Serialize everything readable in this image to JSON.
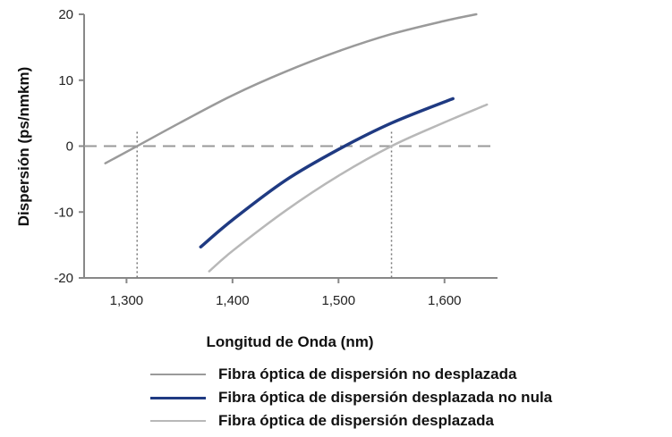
{
  "chart_data": {
    "type": "line",
    "xlabel": "Longitud de Onda (nm)",
    "ylabel": "Dispersión (ps/nmkm)",
    "xlim": [
      1260,
      1650
    ],
    "ylim": [
      -20,
      20
    ],
    "x_ticks": [
      1300,
      1400,
      1500,
      1600
    ],
    "x_tick_labels": [
      "1,300",
      "1,400",
      "1,500",
      "1,600"
    ],
    "y_ticks": [
      20,
      10,
      0,
      -10,
      -20
    ],
    "y_tick_labels": [
      "20",
      "10",
      "0",
      "-10",
      "-20"
    ],
    "grid": false,
    "legend_position": "bottom",
    "reference_lines": {
      "horizontal_y": 0,
      "vertical_x": [
        1310,
        1550
      ]
    },
    "series": [
      {
        "name": "Fibra óptica de dispersión no desplazada",
        "color": "#9a9a9a",
        "x": [
          1280,
          1310,
          1350,
          1400,
          1450,
          1500,
          1550,
          1600,
          1630
        ],
        "y": [
          -2.6,
          0,
          3.5,
          7.7,
          11.3,
          14.4,
          17.0,
          19.0,
          20.0
        ]
      },
      {
        "name": "Fibra óptica de dispersión desplazada no nula",
        "color": "#1f3a82",
        "x": [
          1370,
          1400,
          1450,
          1500,
          1550,
          1608
        ],
        "y": [
          -15.3,
          -11.2,
          -5.2,
          -0.5,
          3.5,
          7.2
        ]
      },
      {
        "name": "Fibra óptica de dispersión desplazada",
        "color": "#b8b8b8",
        "x": [
          1378,
          1400,
          1450,
          1500,
          1550,
          1600,
          1640
        ],
        "y": [
          -19.0,
          -15.9,
          -9.8,
          -4.5,
          0,
          3.6,
          6.3
        ]
      }
    ]
  }
}
